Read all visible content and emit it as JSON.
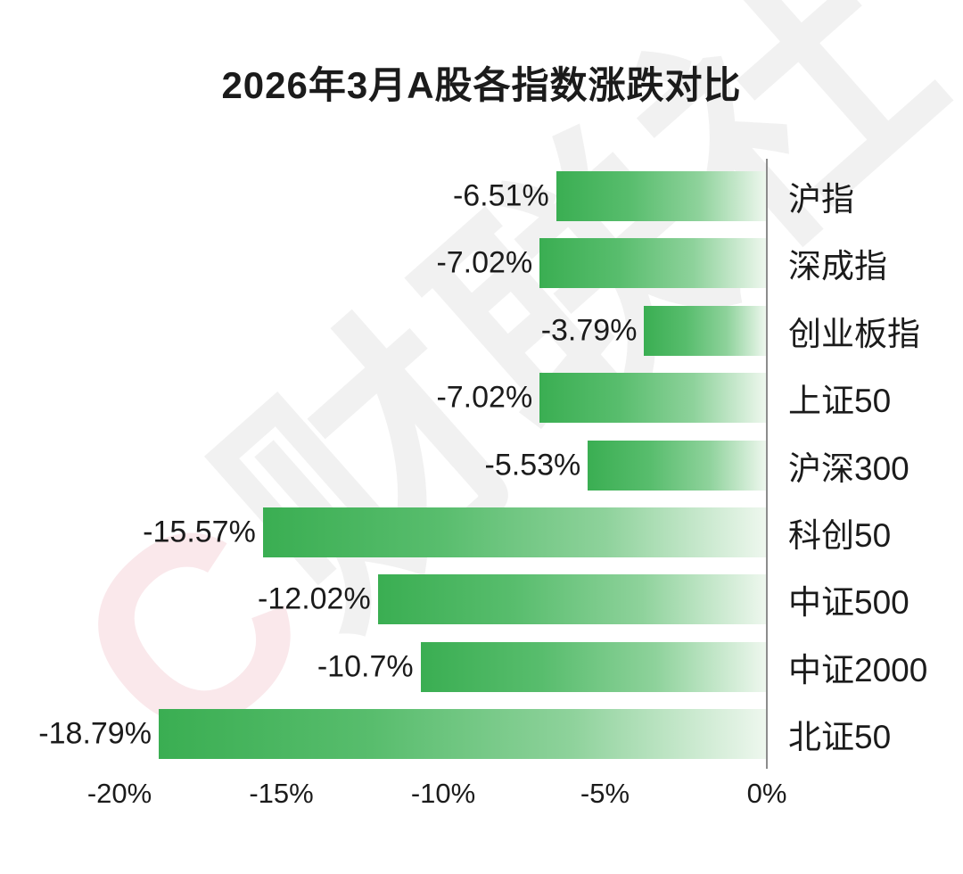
{
  "title": "2026年3月A股各指数涨跌对比",
  "watermark": {
    "logo_letter": "C",
    "chars": [
      "财",
      "联",
      "社"
    ]
  },
  "chart_data": {
    "type": "bar",
    "orientation": "horizontal",
    "title": "2026年3月A股各指数涨跌对比",
    "categories": [
      "沪指",
      "深成指",
      "创业板指",
      "上证50",
      "沪深300",
      "科创50",
      "中证500",
      "中证2000",
      "北证50"
    ],
    "values": [
      -6.51,
      -7.02,
      -3.79,
      -7.02,
      -5.53,
      -15.57,
      -12.02,
      -10.7,
      -18.79
    ],
    "value_labels": [
      "-6.51%",
      "-7.02%",
      "-3.79%",
      "-7.02%",
      "-5.53%",
      "-15.57%",
      "-12.02%",
      "-10.7%",
      "-18.79%"
    ],
    "x_ticks": [
      "-20%",
      "-15%",
      "-10%",
      "-5%",
      "0%"
    ],
    "x_tick_values": [
      -20,
      -15,
      -10,
      -5,
      0
    ],
    "xlim": [
      -21.5,
      0
    ],
    "grid": false,
    "legend": "none",
    "bar_gradient_start": "#3aae52",
    "bar_gradient_end": "#eef7ee",
    "axis_line_color": "#8c8c8c",
    "value_label_position": "left-of-bar",
    "category_label_position": "right-of-axis"
  }
}
